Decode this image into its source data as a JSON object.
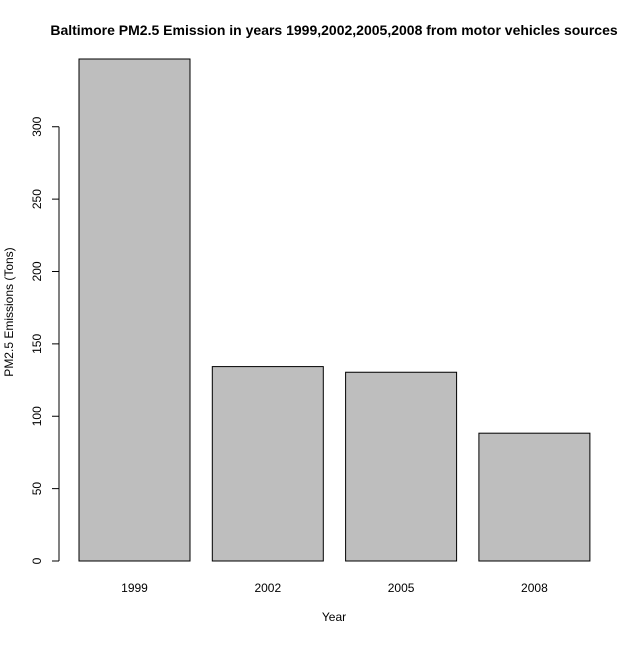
{
  "chart_data": {
    "type": "bar",
    "title": "Baltimore PM2.5 Emission in years 1999,2002,2005,2008 from motor vehicles sources",
    "xlabel": "Year",
    "ylabel": "PM2.5 Emissions (Tons)",
    "categories": [
      "1999",
      "2002",
      "2005",
      "2008"
    ],
    "values": [
      346.8,
      134.3,
      130.4,
      88.3
    ],
    "ylim": [
      0,
      346.8
    ],
    "yticks": [
      0,
      50,
      100,
      150,
      200,
      250,
      300
    ],
    "ytick_labels": [
      "0",
      "50",
      "100",
      "150",
      "200",
      "250",
      "300"
    ],
    "bar_color": "#bebebe",
    "grid": false,
    "legend": "none"
  }
}
